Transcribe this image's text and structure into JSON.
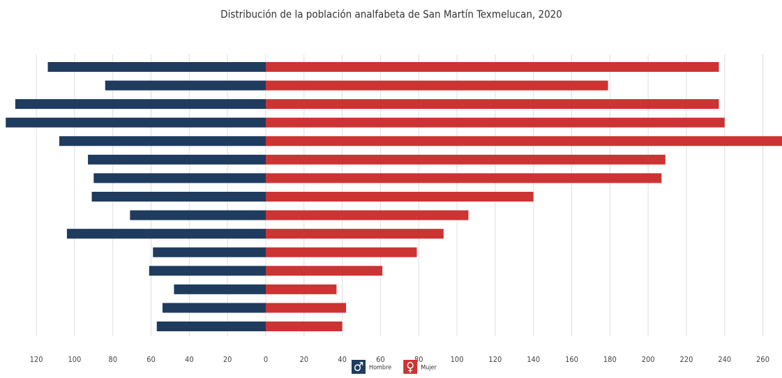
{
  "chart_data": {
    "type": "pyramid",
    "title": "Distribución de la población analfabeta de San Martín Texmelucan, 2020",
    "categories": [
      null,
      null,
      null,
      null,
      null,
      null,
      null,
      null,
      null,
      null,
      null,
      null,
      null,
      null,
      null
    ],
    "series": [
      {
        "name": "Hombre",
        "color": "#1f3b5e",
        "side": "left",
        "values": [
          114,
          84,
          131,
          136,
          108,
          93,
          90,
          91,
          71,
          104,
          59,
          61,
          48,
          54,
          57
        ]
      },
      {
        "name": "Mujer",
        "color": "#cc3333",
        "side": "right",
        "values": [
          237,
          179,
          237,
          240,
          270,
          209,
          207,
          140,
          106,
          93,
          79,
          61,
          37,
          42,
          40
        ]
      }
    ],
    "xlim": [
      -139,
      270
    ],
    "xticks": [
      {
        "value": -120,
        "label": "120"
      },
      {
        "value": -100,
        "label": "100"
      },
      {
        "value": -80,
        "label": "80"
      },
      {
        "value": -60,
        "label": "60"
      },
      {
        "value": -40,
        "label": "40"
      },
      {
        "value": -20,
        "label": "20"
      },
      0,
      20,
      40,
      60,
      80,
      100,
      120,
      140,
      160,
      180,
      200,
      220,
      240,
      260
    ],
    "grid": true
  }
}
